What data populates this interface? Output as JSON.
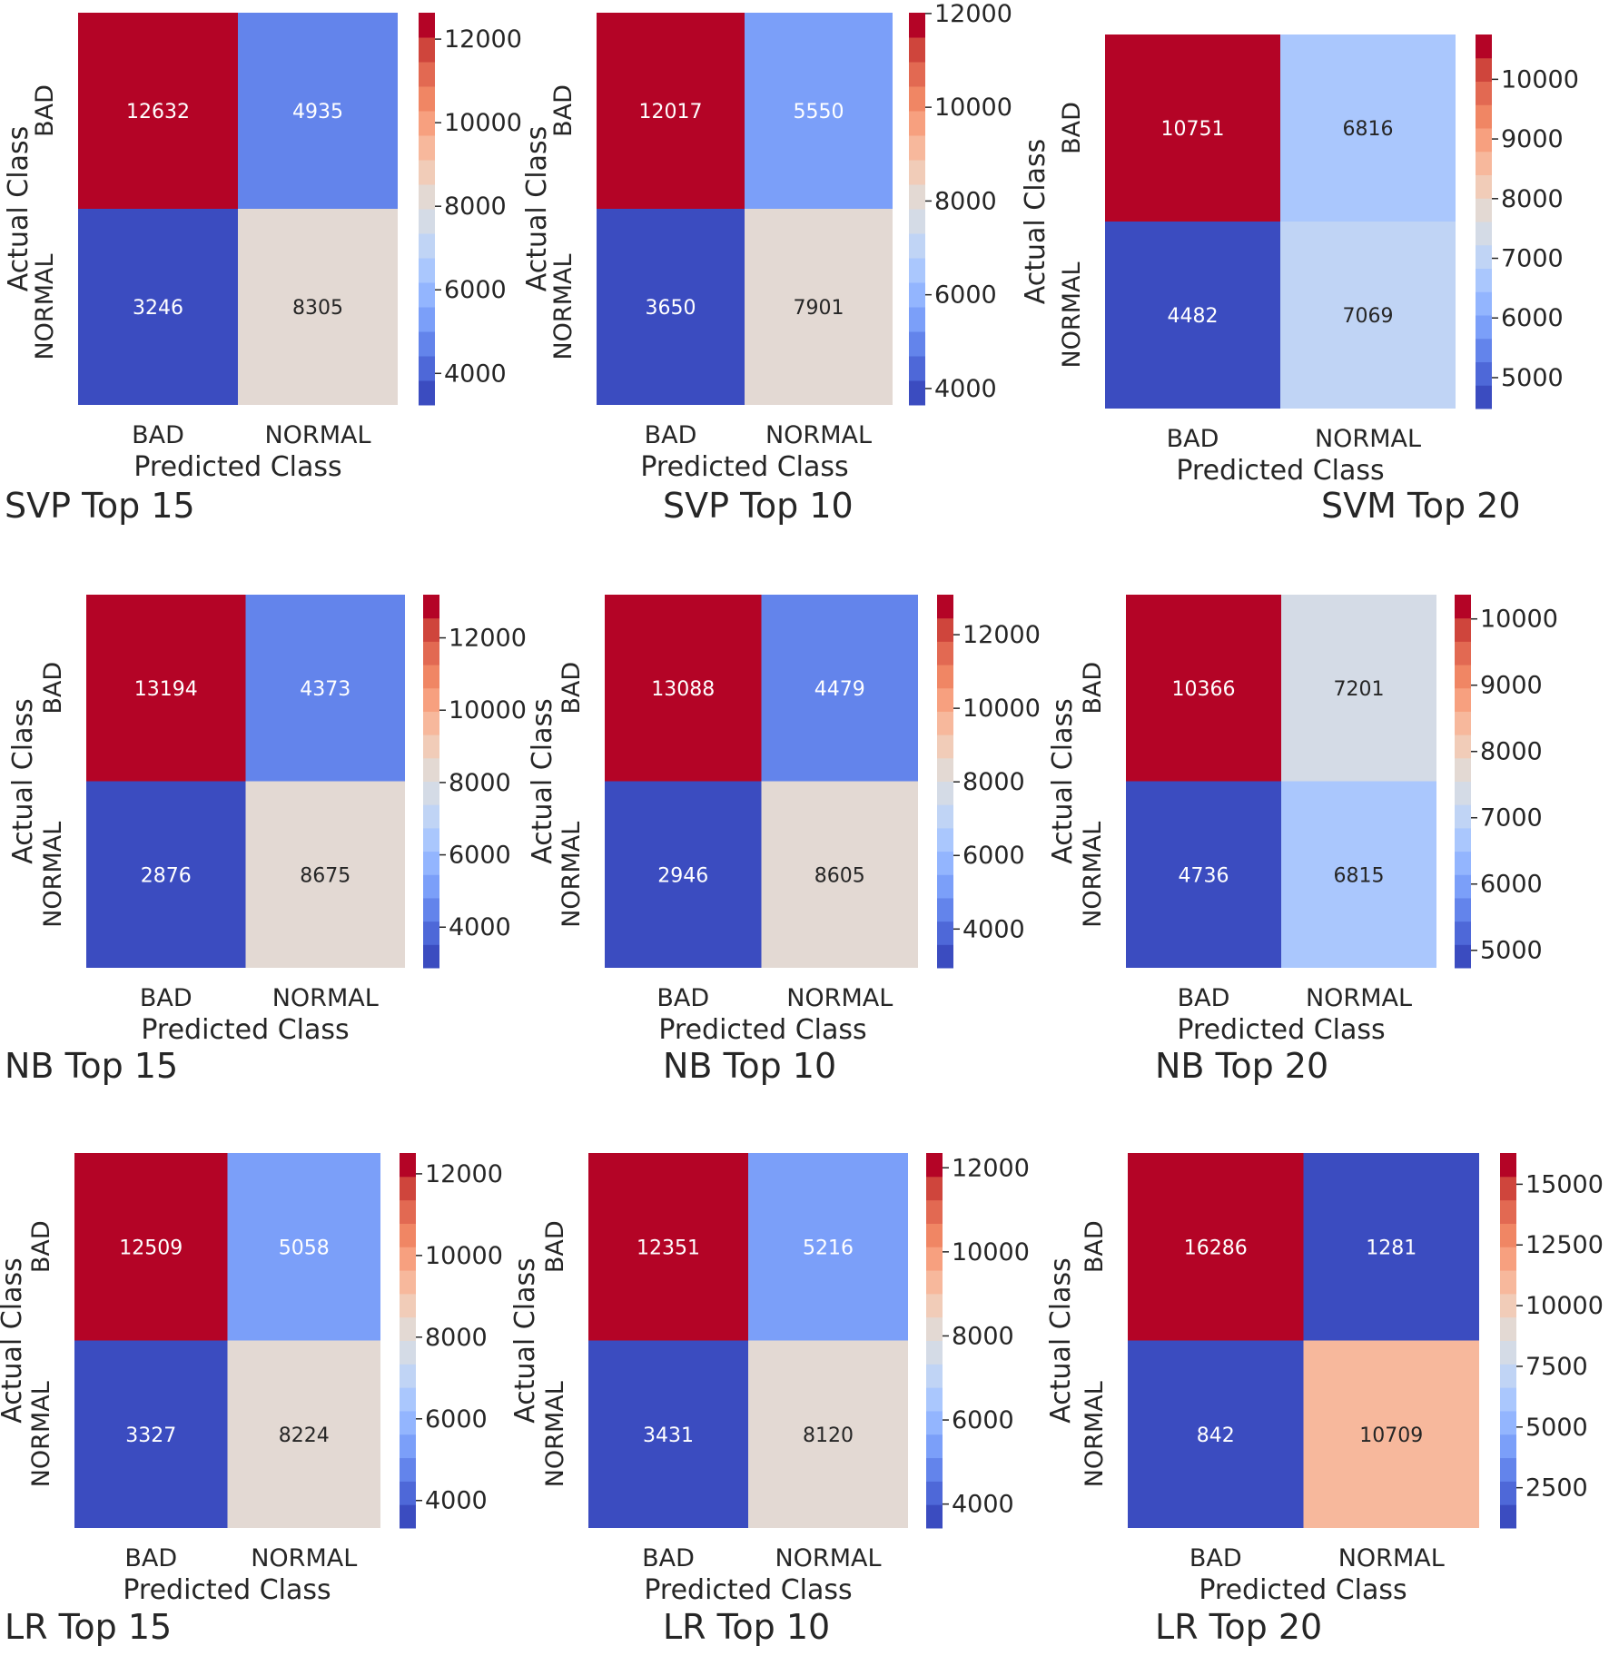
{
  "chart_data": [
    {
      "type": "heatmap",
      "title": "SVP Top 15",
      "xlabel": "Predicted Class",
      "ylabel": "Actual Class",
      "x_categories": [
        "BAD",
        "NORMAL"
      ],
      "y_categories": [
        "BAD",
        "NORMAL"
      ],
      "values": [
        [
          12632,
          4935
        ],
        [
          3246,
          8305
        ]
      ],
      "vmin": 3246,
      "vmax": 12632,
      "colorbar_ticks": [
        4000,
        6000,
        8000,
        10000,
        12000
      ],
      "colorbar_tick_labels": [
        "4000",
        "6000",
        "8000",
        "10000",
        "12000"
      ]
    },
    {
      "type": "heatmap",
      "title": "SVP Top 10",
      "xlabel": "Predicted Class",
      "ylabel": "Actual Class",
      "x_categories": [
        "BAD",
        "NORMAL"
      ],
      "y_categories": [
        "BAD",
        "NORMAL"
      ],
      "values": [
        [
          12017,
          5550
        ],
        [
          3650,
          7901
        ]
      ],
      "vmin": 3650,
      "vmax": 12017,
      "colorbar_ticks": [
        4000,
        6000,
        8000,
        10000,
        12000
      ],
      "colorbar_tick_labels": [
        "4000",
        "6000",
        "8000",
        "10000",
        "12000"
      ]
    },
    {
      "type": "heatmap",
      "title": "SVM Top 20",
      "xlabel": "Predicted Class",
      "ylabel": "Actual Class",
      "x_categories": [
        "BAD",
        "NORMAL"
      ],
      "y_categories": [
        "BAD",
        "NORMAL"
      ],
      "values": [
        [
          10751,
          6816
        ],
        [
          4482,
          7069
        ]
      ],
      "vmin": 4482,
      "vmax": 10751,
      "colorbar_ticks": [
        5000,
        6000,
        7000,
        8000,
        9000,
        10000
      ],
      "colorbar_tick_labels": [
        "5000",
        "6000",
        "7000",
        "8000",
        "9000",
        "10000"
      ]
    },
    {
      "type": "heatmap",
      "title": "NB Top 15",
      "xlabel": "Predicted Class",
      "ylabel": "Actual Class",
      "x_categories": [
        "BAD",
        "NORMAL"
      ],
      "y_categories": [
        "BAD",
        "NORMAL"
      ],
      "values": [
        [
          13194,
          4373
        ],
        [
          2876,
          8675
        ]
      ],
      "vmin": 2876,
      "vmax": 13194,
      "colorbar_ticks": [
        4000,
        6000,
        8000,
        10000,
        12000
      ],
      "colorbar_tick_labels": [
        "4000",
        "6000",
        "8000",
        "10000",
        "12000"
      ]
    },
    {
      "type": "heatmap",
      "title": "NB Top 10",
      "xlabel": "Predicted Class",
      "ylabel": "Actual Class",
      "x_categories": [
        "BAD",
        "NORMAL"
      ],
      "y_categories": [
        "BAD",
        "NORMAL"
      ],
      "values": [
        [
          13088,
          4479
        ],
        [
          2946,
          8605
        ]
      ],
      "vmin": 2946,
      "vmax": 13088,
      "colorbar_ticks": [
        4000,
        6000,
        8000,
        10000,
        12000
      ],
      "colorbar_tick_labels": [
        "4000",
        "6000",
        "8000",
        "10000",
        "12000"
      ]
    },
    {
      "type": "heatmap",
      "title": "NB Top 20",
      "xlabel": "Predicted Class",
      "ylabel": "Actual Class",
      "x_categories": [
        "BAD",
        "NORMAL"
      ],
      "y_categories": [
        "BAD",
        "NORMAL"
      ],
      "values": [
        [
          10366,
          7201
        ],
        [
          4736,
          6815
        ]
      ],
      "vmin": 4736,
      "vmax": 10366,
      "colorbar_ticks": [
        5000,
        6000,
        7000,
        8000,
        9000,
        10000
      ],
      "colorbar_tick_labels": [
        "5000",
        "6000",
        "7000",
        "8000",
        "9000",
        "10000"
      ]
    },
    {
      "type": "heatmap",
      "title": "LR Top 15",
      "xlabel": "Predicted Class",
      "ylabel": "Actual Class",
      "x_categories": [
        "BAD",
        "NORMAL"
      ],
      "y_categories": [
        "BAD",
        "NORMAL"
      ],
      "values": [
        [
          12509,
          5058
        ],
        [
          3327,
          8224
        ]
      ],
      "vmin": 3327,
      "vmax": 12509,
      "colorbar_ticks": [
        4000,
        6000,
        8000,
        10000,
        12000
      ],
      "colorbar_tick_labels": [
        "4000",
        "6000",
        "8000",
        "10000",
        "12000"
      ]
    },
    {
      "type": "heatmap",
      "title": "LR Top 10",
      "xlabel": "Predicted Class",
      "ylabel": "Actual Class",
      "x_categories": [
        "BAD",
        "NORMAL"
      ],
      "y_categories": [
        "BAD",
        "NORMAL"
      ],
      "values": [
        [
          12351,
          5216
        ],
        [
          3431,
          8120
        ]
      ],
      "vmin": 3431,
      "vmax": 12351,
      "colorbar_ticks": [
        4000,
        6000,
        8000,
        10000,
        12000
      ],
      "colorbar_tick_labels": [
        "4000",
        "6000",
        "8000",
        "10000",
        "12000"
      ]
    },
    {
      "type": "heatmap",
      "title": "LR Top 20",
      "xlabel": "Predicted Class",
      "ylabel": "Actual Class",
      "x_categories": [
        "BAD",
        "NORMAL"
      ],
      "y_categories": [
        "BAD",
        "NORMAL"
      ],
      "values": [
        [
          16286,
          1281
        ],
        [
          842,
          10709
        ]
      ],
      "vmin": 842,
      "vmax": 16286,
      "colorbar_ticks": [
        2500,
        5000,
        7500,
        10000,
        12500,
        15000
      ],
      "colorbar_tick_labels": [
        "2500",
        "5000",
        "7500",
        "10000",
        "12500",
        "15000"
      ]
    }
  ],
  "colors": {
    "cmap": [
      "#3b4cc0",
      "#4e68d8",
      "#6384eb",
      "#7b9ff9",
      "#93b5fe",
      "#aac7fd",
      "#c0d4f5",
      "#d4dbe6",
      "#e3d9d3",
      "#f1ccb8",
      "#f7b89c",
      "#f7a07f",
      "#f08664",
      "#e26952",
      "#cf453c",
      "#b40426"
    ]
  }
}
